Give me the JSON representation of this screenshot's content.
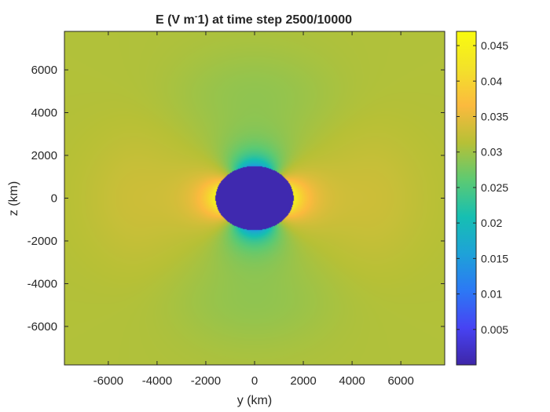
{
  "chart_data": {
    "type": "heatmap",
    "title": {
      "prefix": "E (V m",
      "superscript": "-",
      "suffix": "1) at time step 2500/10000"
    },
    "xlabel": "y (km)",
    "ylabel": "z (km)",
    "xlim": [
      -7800,
      7800
    ],
    "ylim": [
      -7800,
      7800
    ],
    "xticks": [
      -6000,
      -4000,
      -2000,
      0,
      2000,
      4000,
      6000
    ],
    "xtick_labels": [
      "-6000",
      "-4000",
      "-2000",
      "0",
      "2000",
      "4000",
      "6000"
    ],
    "yticks": [
      6000,
      4000,
      2000,
      0,
      -2000,
      -4000,
      -6000
    ],
    "ytick_labels": [
      "6000",
      "4000",
      "2000",
      "0",
      "-2000",
      "-4000",
      "-6000"
    ],
    "colorbar": {
      "range": [
        0,
        0.047
      ],
      "ticks": [
        0.045,
        0.04,
        0.035,
        0.03,
        0.025,
        0.02,
        0.015,
        0.01,
        0.005
      ],
      "tick_labels": [
        "0.045",
        "0.04",
        "0.035",
        "0.03",
        "0.025",
        "0.02",
        "0.015",
        "0.01",
        "0.005"
      ],
      "colormap": "parula"
    },
    "field": {
      "background_value": 0.031,
      "body_radius_y": 1600,
      "body_radius_z": 1500,
      "body_value": 0.0005,
      "max_value_at_limb": 0.045,
      "min_value_above_below": 0.015
    },
    "colors": {
      "parula": [
        "#3e26a8",
        "#4743f3",
        "#2c78f5",
        "#1ea2d8",
        "#16bfb2",
        "#5dca72",
        "#b7c036",
        "#fbba3e",
        "#f3e22a",
        "#f9fb0e"
      ]
    }
  }
}
